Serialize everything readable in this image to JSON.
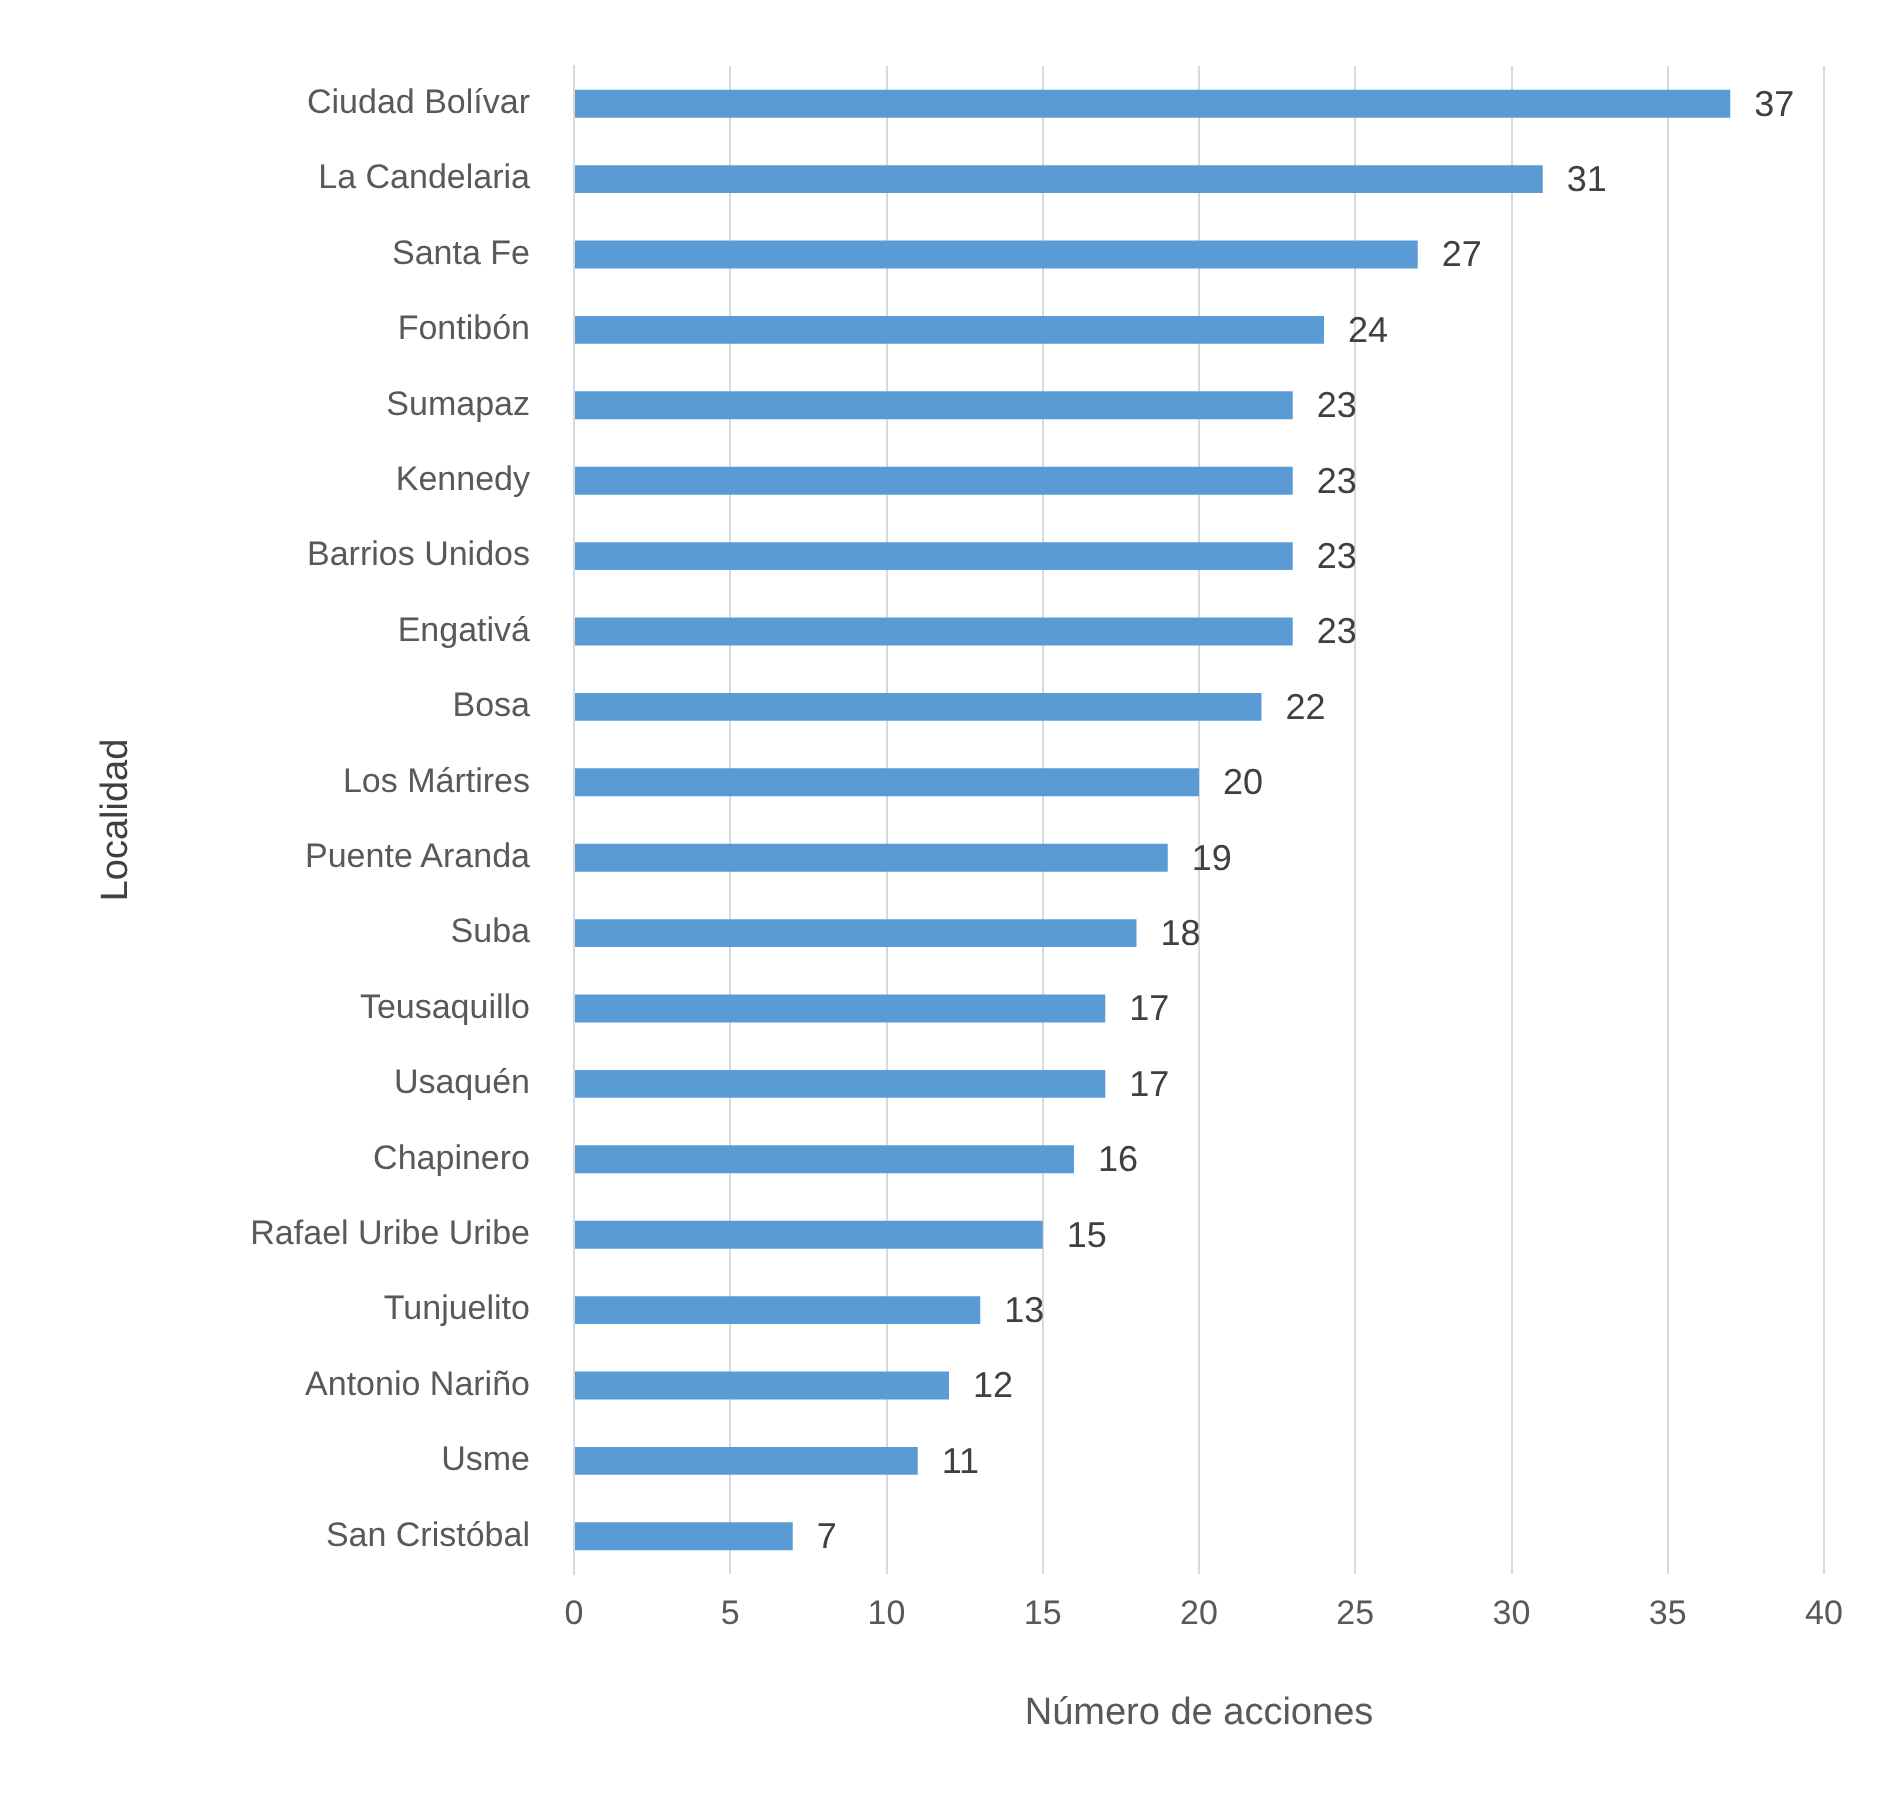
{
  "chart_data": {
    "type": "bar",
    "orientation": "horizontal",
    "xlabel": "Número de acciones",
    "ylabel": "Localidad",
    "categories": [
      "Ciudad Bolívar",
      "La Candelaria",
      "Santa Fe",
      "Fontibón",
      "Sumapaz",
      "Kennedy",
      "Barrios Unidos",
      "Engativá",
      "Bosa",
      "Los Mártires",
      "Puente Aranda",
      "Suba",
      "Teusaquillo",
      "Usaquén",
      "Chapinero",
      "Rafael Uribe Uribe",
      "Tunjuelito",
      "Antonio Nariño",
      "Usme",
      "San Cristóbal"
    ],
    "values": [
      37,
      31,
      27,
      24,
      23,
      23,
      23,
      23,
      22,
      20,
      19,
      18,
      17,
      17,
      16,
      15,
      13,
      12,
      11,
      7
    ],
    "color": "#5b9bd5",
    "xlim": [
      0,
      40
    ],
    "xticks": [
      0,
      5,
      10,
      15,
      20,
      25,
      30,
      35,
      40
    ],
    "grid": "x",
    "data_labels": true,
    "legend": false
  }
}
